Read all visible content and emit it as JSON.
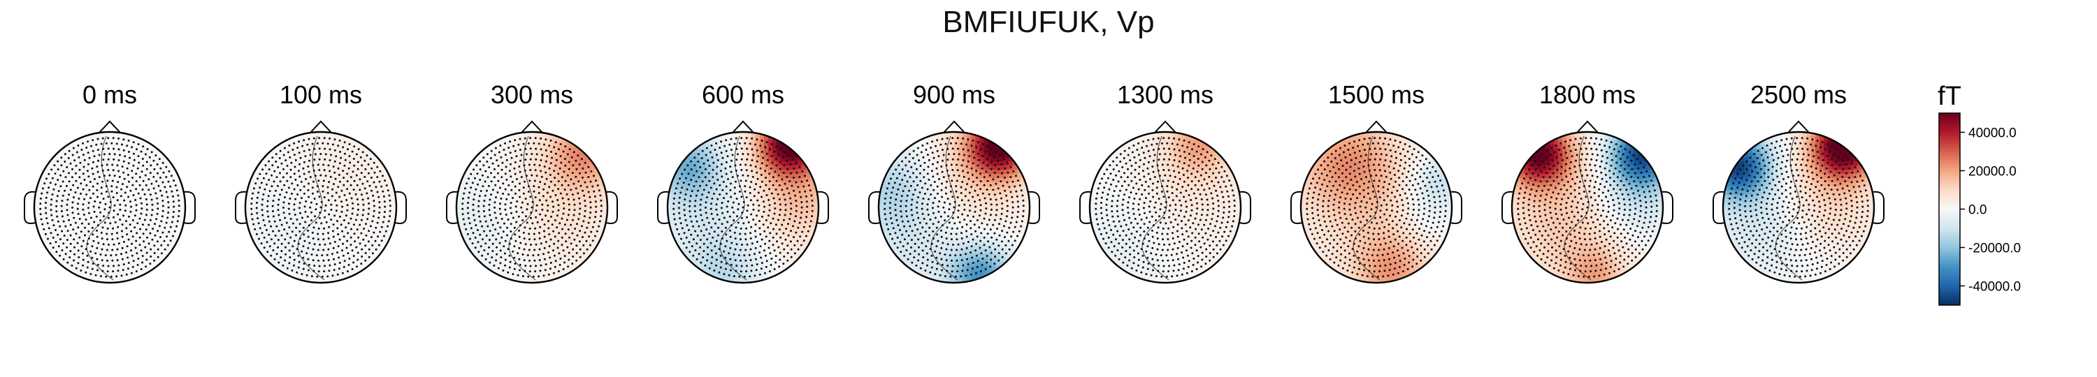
{
  "figure": {
    "title": "BMFIUFUK, Vp",
    "unit": "fT"
  },
  "colorbar": {
    "min": -50000,
    "max": 50000,
    "ticks": [
      40000,
      20000,
      0,
      -20000,
      -40000
    ],
    "tick_labels": [
      "40000.0",
      "20000.0",
      "0.0",
      "-20000.0",
      "-40000.0"
    ],
    "colormap": "RdBu_r",
    "colors": [
      "#053061",
      "#2166ac",
      "#4393c3",
      "#92c5de",
      "#d1e5f0",
      "#f7f7f7",
      "#fddbc7",
      "#f4a582",
      "#d6604d",
      "#b2182b",
      "#67001f"
    ]
  },
  "panels": [
    {
      "label": "0 ms",
      "time_ms": 0,
      "blobs": []
    },
    {
      "label": "100 ms",
      "time_ms": 100,
      "blobs": [
        [
          0.3,
          0.4,
          0.5,
          4000
        ],
        [
          -0.4,
          -0.2,
          0.5,
          -3000
        ]
      ]
    },
    {
      "label": "300 ms",
      "time_ms": 300,
      "blobs": [
        [
          0.7,
          0.75,
          0.35,
          22000
        ],
        [
          0.3,
          0.0,
          0.6,
          8000
        ],
        [
          -0.6,
          -0.2,
          0.5,
          -6000
        ]
      ]
    },
    {
      "label": "600 ms",
      "time_ms": 600,
      "blobs": [
        [
          0.62,
          0.85,
          0.3,
          52000
        ],
        [
          0.75,
          0.1,
          0.45,
          15000
        ],
        [
          -0.72,
          0.55,
          0.3,
          -22000
        ],
        [
          -0.25,
          -0.88,
          0.35,
          -12000
        ],
        [
          -0.55,
          -0.1,
          0.5,
          -8000
        ]
      ]
    },
    {
      "label": "900 ms",
      "time_ms": 900,
      "blobs": [
        [
          0.6,
          0.82,
          0.3,
          50000
        ],
        [
          0.1,
          0.3,
          0.6,
          10000
        ],
        [
          0.35,
          -0.9,
          0.3,
          -30000
        ],
        [
          -0.8,
          0.3,
          0.4,
          -15000
        ],
        [
          -0.5,
          -0.4,
          0.5,
          -10000
        ]
      ]
    },
    {
      "label": "1300 ms",
      "time_ms": 1300,
      "blobs": [
        [
          0.45,
          0.85,
          0.3,
          18000
        ],
        [
          0.3,
          0.2,
          0.6,
          6000
        ],
        [
          -0.55,
          -0.45,
          0.5,
          -5000
        ]
      ]
    },
    {
      "label": "1500 ms",
      "time_ms": 1500,
      "blobs": [
        [
          -0.4,
          0.6,
          0.45,
          18000
        ],
        [
          0.2,
          -0.85,
          0.35,
          18000
        ],
        [
          0.0,
          0.0,
          0.8,
          9000
        ],
        [
          0.82,
          0.35,
          0.28,
          -15000
        ],
        [
          0.65,
          -0.2,
          0.3,
          -6000
        ]
      ]
    },
    {
      "label": "1800 ms",
      "time_ms": 1800,
      "blobs": [
        [
          -0.65,
          0.72,
          0.3,
          48000
        ],
        [
          -0.2,
          -0.2,
          0.7,
          14000
        ],
        [
          0.72,
          0.72,
          0.3,
          -45000
        ],
        [
          0.6,
          0.1,
          0.4,
          -15000
        ],
        [
          0.1,
          -0.9,
          0.25,
          14000
        ]
      ]
    },
    {
      "label": "2500 ms",
      "time_ms": 2500,
      "blobs": [
        [
          0.6,
          0.82,
          0.3,
          55000
        ],
        [
          0.35,
          0.1,
          0.5,
          12000
        ],
        [
          -0.8,
          0.55,
          0.3,
          -45000
        ],
        [
          -0.45,
          -0.2,
          0.5,
          -10000
        ]
      ]
    }
  ]
}
